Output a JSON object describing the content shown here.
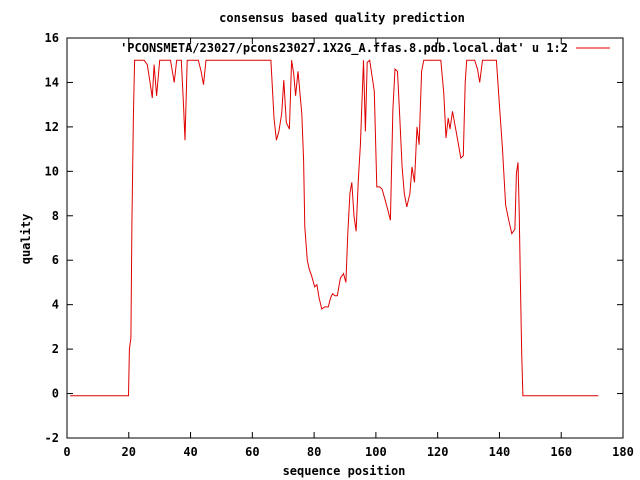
{
  "chart_data": {
    "type": "line",
    "title": "consensus based quality prediction",
    "xlabel": "sequence position",
    "ylabel": "quality",
    "xlim": [
      0,
      180
    ],
    "ylim": [
      -2,
      16
    ],
    "xticks": [
      0,
      20,
      40,
      60,
      80,
      100,
      120,
      140,
      160,
      180
    ],
    "yticks": [
      -2,
      0,
      2,
      4,
      6,
      8,
      10,
      12,
      14,
      16
    ],
    "legend_position": "top-right",
    "series": [
      {
        "name": "'PCONSMETA/23027/pcons23027.1X2G_A.ffas.8.pdb.local.dat' u 1:2",
        "color": "#e00000",
        "points": [
          [
            1,
            -0.1
          ],
          [
            19.9,
            -0.1
          ],
          [
            20.2,
            2.0
          ],
          [
            20.7,
            2.5
          ],
          [
            21.0,
            7.6
          ],
          [
            21.5,
            12.5
          ],
          [
            21.9,
            15.0
          ],
          [
            25.0,
            15.0
          ],
          [
            26.0,
            14.8
          ],
          [
            27.0,
            13.9
          ],
          [
            27.6,
            13.3
          ],
          [
            28.2,
            14.8
          ],
          [
            29.0,
            13.4
          ],
          [
            30.0,
            15.0
          ],
          [
            33.5,
            15.0
          ],
          [
            34.7,
            14.0
          ],
          [
            35.5,
            15.0
          ],
          [
            37.0,
            15.0
          ],
          [
            37.7,
            13.0
          ],
          [
            38.2,
            11.4
          ],
          [
            38.9,
            15.0
          ],
          [
            42.5,
            15.0
          ],
          [
            43.4,
            14.5
          ],
          [
            44.2,
            13.9
          ],
          [
            45.0,
            15.0
          ],
          [
            66.0,
            15.0
          ],
          [
            67.0,
            12.4
          ],
          [
            67.8,
            11.4
          ],
          [
            68.6,
            11.8
          ],
          [
            69.5,
            12.6
          ],
          [
            70.2,
            14.1
          ],
          [
            71.0,
            12.2
          ],
          [
            72.0,
            11.9
          ],
          [
            72.7,
            15.0
          ],
          [
            73.4,
            14.4
          ],
          [
            74.0,
            13.4
          ],
          [
            74.8,
            14.5
          ],
          [
            76.0,
            12.6
          ],
          [
            76.6,
            10.5
          ],
          [
            77.0,
            7.5
          ],
          [
            77.8,
            6.0
          ],
          [
            78.4,
            5.6
          ],
          [
            79.2,
            5.3
          ],
          [
            80.2,
            4.8
          ],
          [
            80.9,
            4.9
          ],
          [
            81.6,
            4.3
          ],
          [
            82.5,
            3.8
          ],
          [
            83.4,
            3.9
          ],
          [
            84.6,
            3.9
          ],
          [
            85.3,
            4.3
          ],
          [
            86.0,
            4.5
          ],
          [
            86.7,
            4.4
          ],
          [
            87.5,
            4.4
          ],
          [
            88.5,
            5.2
          ],
          [
            89.5,
            5.4
          ],
          [
            90.3,
            5.0
          ],
          [
            90.9,
            7.2
          ],
          [
            91.6,
            9.0
          ],
          [
            92.2,
            9.5
          ],
          [
            92.9,
            8.0
          ],
          [
            93.6,
            7.3
          ],
          [
            94.3,
            9.6
          ],
          [
            95.0,
            11.2
          ],
          [
            96.0,
            15.0
          ],
          [
            96.6,
            11.8
          ],
          [
            97.2,
            14.9
          ],
          [
            98.0,
            15.0
          ],
          [
            99.5,
            13.6
          ],
          [
            100.3,
            9.3
          ],
          [
            101.2,
            9.3
          ],
          [
            102.0,
            9.2
          ],
          [
            103.0,
            8.7
          ],
          [
            104.0,
            8.2
          ],
          [
            104.7,
            7.8
          ],
          [
            105.5,
            12.8
          ],
          [
            106.2,
            14.6
          ],
          [
            107.0,
            14.5
          ],
          [
            107.7,
            12.5
          ],
          [
            108.5,
            10.2
          ],
          [
            109.2,
            9.0
          ],
          [
            110.0,
            8.4
          ],
          [
            111.0,
            9.0
          ],
          [
            111.7,
            10.2
          ],
          [
            112.5,
            9.5
          ],
          [
            113.3,
            12.0
          ],
          [
            114.0,
            11.2
          ],
          [
            114.8,
            14.5
          ],
          [
            115.5,
            15.0
          ],
          [
            117.0,
            15.0
          ],
          [
            119.0,
            15.0
          ],
          [
            121.0,
            15.0
          ],
          [
            122.0,
            13.5
          ],
          [
            122.7,
            11.5
          ],
          [
            123.4,
            12.4
          ],
          [
            124.0,
            11.9
          ],
          [
            124.8,
            12.7
          ],
          [
            126.5,
            11.4
          ],
          [
            127.5,
            10.6
          ],
          [
            128.3,
            10.7
          ],
          [
            128.9,
            14.0
          ],
          [
            129.4,
            15.0
          ],
          [
            132.0,
            15.0
          ],
          [
            132.9,
            14.6
          ],
          [
            133.6,
            14.0
          ],
          [
            134.5,
            15.0
          ],
          [
            136.5,
            15.0
          ],
          [
            139.0,
            15.0
          ],
          [
            140.0,
            13.0
          ],
          [
            141.0,
            11.0
          ],
          [
            142.0,
            8.5
          ],
          [
            143.0,
            7.8
          ],
          [
            144.0,
            7.2
          ],
          [
            145.0,
            7.4
          ],
          [
            145.5,
            9.9
          ],
          [
            146.0,
            10.4
          ],
          [
            146.4,
            8.2
          ],
          [
            146.8,
            5.0
          ],
          [
            147.2,
            1.8
          ],
          [
            147.6,
            -0.1
          ],
          [
            172,
            -0.1
          ]
        ]
      }
    ]
  }
}
